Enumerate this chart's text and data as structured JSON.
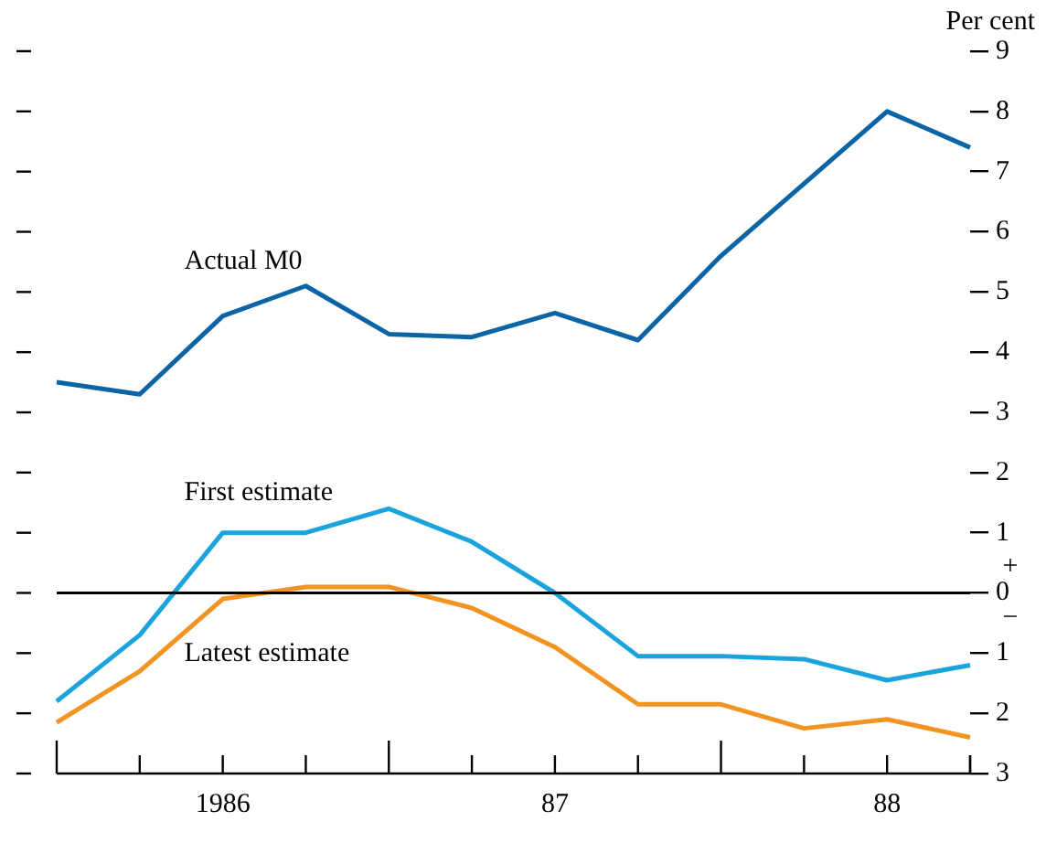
{
  "chart_data": {
    "type": "line",
    "ylabel": "Per cent",
    "categories": [
      null,
      null,
      "1986",
      null,
      null,
      null,
      "87",
      null,
      null,
      null,
      "88",
      null
    ],
    "series": [
      {
        "name": "Actual M0",
        "color": "#0b64a5",
        "values": [
          3.5,
          3.3,
          4.6,
          5.1,
          4.3,
          4.25,
          4.65,
          4.2,
          5.6,
          6.8,
          8.0,
          7.4
        ]
      },
      {
        "name": "First estimate",
        "color": "#1ba3de",
        "values": [
          -1.8,
          -0.7,
          1.0,
          1.0,
          1.4,
          0.85,
          0.0,
          -1.05,
          -1.05,
          -1.1,
          -1.45,
          -1.2
        ]
      },
      {
        "name": "Latest estimate",
        "color": "#f39322",
        "values": [
          -2.15,
          -1.3,
          -0.1,
          0.1,
          0.1,
          -0.25,
          -0.9,
          -1.85,
          -1.85,
          -2.25,
          -2.1,
          -2.4
        ]
      }
    ],
    "ylim": [
      -3,
      9
    ],
    "yticks": [
      {
        "value": -3,
        "label": "3"
      },
      {
        "value": -2,
        "label": "2"
      },
      {
        "value": -1,
        "label": "1"
      },
      0,
      1,
      2,
      3,
      4,
      5,
      6,
      7,
      8,
      9
    ],
    "ref_lines": [
      {
        "axis": "y",
        "value": 0,
        "color": "#000000"
      }
    ],
    "annotations": [
      "+",
      "−"
    ],
    "grid": false,
    "legend": false,
    "marker": "none",
    "line_style": "solid"
  }
}
